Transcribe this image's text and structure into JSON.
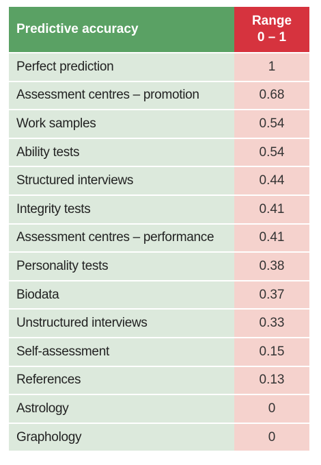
{
  "header": {
    "title": "Predictive accuracy",
    "range_line1": "Range",
    "range_line2": "0 – 1"
  },
  "rows": [
    {
      "label": "Perfect prediction",
      "value": "1"
    },
    {
      "label": "Assessment centres – promotion",
      "value": "0.68"
    },
    {
      "label": "Work samples",
      "value": "0.54"
    },
    {
      "label": "Ability tests",
      "value": "0.54"
    },
    {
      "label": "Structured interviews",
      "value": "0.44"
    },
    {
      "label": "Integrity tests",
      "value": "0.41"
    },
    {
      "label": "Assessment centres – performance",
      "value": "0.41"
    },
    {
      "label": "Personality tests",
      "value": "0.38"
    },
    {
      "label": "Biodata",
      "value": "0.37"
    },
    {
      "label": "Unstructured interviews",
      "value": "0.33"
    },
    {
      "label": "Self-assessment",
      "value": "0.15"
    },
    {
      "label": "References",
      "value": "0.13"
    },
    {
      "label": "Astrology",
      "value": "0"
    },
    {
      "label": "Graphology",
      "value": "0"
    }
  ],
  "colors": {
    "header_green": "#5aa164",
    "header_red": "#d6333e",
    "row_green": "#dce9dc",
    "row_pink": "#f5d2cd"
  }
}
